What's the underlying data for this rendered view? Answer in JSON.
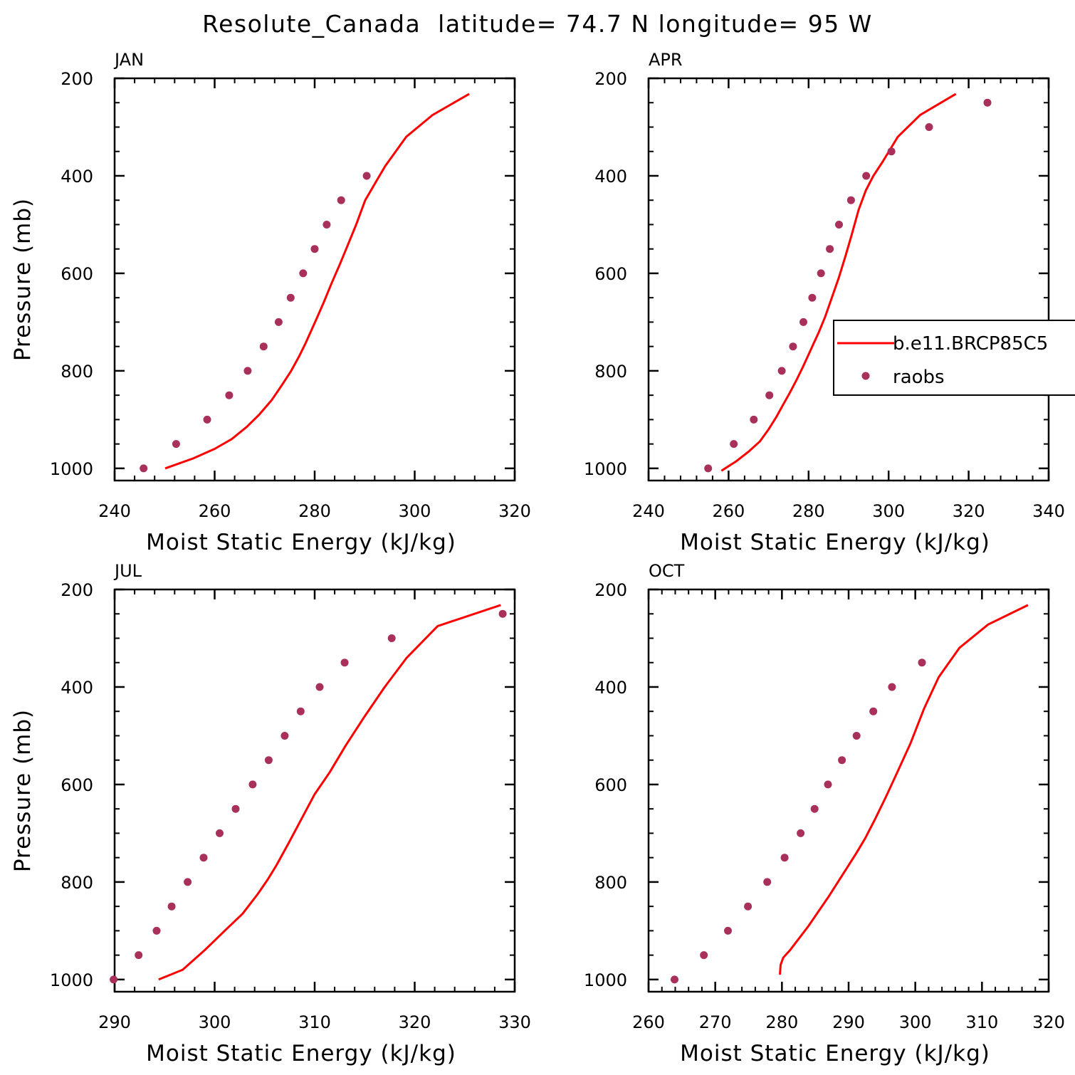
{
  "chart_data": {
    "type": "line",
    "title": "Resolute_Canada  latitude= 74.7 N longitude= 95 W",
    "colors": {
      "model": "#ff0000",
      "raobs": "#a8305a"
    },
    "legend": {
      "placement": "right (inside APR panel, clipped)",
      "entries": [
        {
          "label": "b.e11.BRCP85C5",
          "style": "line"
        },
        {
          "label": "raobs",
          "style": "marker"
        }
      ]
    },
    "panels": [
      {
        "title": "JAN",
        "xlabel": "Moist Static Energy (kJ/kg)",
        "ylabel": "Pressure (mb)",
        "xlim": [
          240,
          320
        ],
        "ylim": [
          1025,
          200
        ],
        "xticks": [
          240,
          260,
          280,
          300,
          320
        ],
        "yticks": [
          200,
          400,
          600,
          800,
          1000
        ],
        "series": [
          {
            "name": "b.e11.BRCP85C5",
            "style": "line",
            "x": [
              250.1,
              255.6,
              260,
              263.4,
              266.4,
              268.9,
              271.4,
              273.4,
              275.3,
              276.9,
              278.1,
              279.2,
              280.3,
              281.8,
              283.4,
              285.1,
              286.7,
              288.3,
              290.1,
              292.1,
              294.1,
              298.3,
              303.6,
              310.9
            ],
            "y": [
              1000,
              980,
              960,
              940,
              915,
              890,
              860,
              830,
              800,
              770,
              745,
              720,
              695,
              660,
              620,
              580,
              540,
              500,
              450,
              415,
              380,
              320,
              275,
              232
            ]
          },
          {
            "name": "raobs",
            "style": "marker",
            "x": [
              245.8,
              252.3,
              258.5,
              262.9,
              266.6,
              269.8,
              272.8,
              275.2,
              277.7,
              280,
              282.4,
              285.3,
              290.4
            ],
            "y": [
              1000,
              950,
              900,
              850,
              800,
              750,
              700,
              650,
              600,
              550,
              500,
              450,
              400
            ]
          }
        ]
      },
      {
        "title": "APR",
        "xlabel": "Moist Static Energy (kJ/kg)",
        "ylabel": "",
        "xlim": [
          240,
          340
        ],
        "ylim": [
          1025,
          200
        ],
        "xticks": [
          240,
          260,
          280,
          300,
          320,
          340
        ],
        "yticks": [
          200,
          400,
          600,
          800,
          1000
        ],
        "series": [
          {
            "name": "b.e11.BRCP85C5",
            "style": "line",
            "x": [
              258.2,
              262,
              265.1,
              267.8,
              270,
              271.9,
              273.6,
              275.3,
              276.9,
              278.4,
              279.8,
              281.2,
              282.6,
              284.1,
              285.8,
              287.5,
              289.2,
              290.8,
              292.5,
              294.3,
              296.2,
              298.6,
              302.3,
              307.9,
              316.8
            ],
            "y": [
              1005,
              985,
              965,
              945,
              920,
              895,
              870,
              845,
              820,
              795,
              770,
              745,
              720,
              690,
              650,
              610,
              565,
              520,
              470,
              430,
              400,
              370,
              320,
              275,
              232
            ]
          },
          {
            "name": "raobs",
            "style": "marker",
            "x": [
              254.9,
              261.3,
              266.3,
              270.2,
              273.3,
              276.1,
              278.7,
              280.9,
              283.1,
              285.3,
              287.6,
              290.6,
              294.4,
              300.7,
              310.1,
              324.7
            ],
            "y": [
              1000,
              950,
              900,
              850,
              800,
              750,
              700,
              650,
              600,
              550,
              500,
              450,
              400,
              350,
              300,
              250
            ]
          }
        ]
      },
      {
        "title": "JUL",
        "xlabel": "Moist Static Energy (kJ/kg)",
        "ylabel": "Pressure (mb)",
        "xlim": [
          290,
          330
        ],
        "ylim": [
          1025,
          200
        ],
        "xticks": [
          290,
          300,
          310,
          320,
          330
        ],
        "yticks": [
          200,
          400,
          600,
          800,
          1000
        ],
        "series": [
          {
            "name": "b.e11.BRCP85C5",
            "style": "line",
            "x": [
              294.4,
              296.8,
              299,
              301,
              302.8,
              304.3,
              305.3,
              306.2,
              307.4,
              308.7,
              310,
              311.5,
              313.1,
              315,
              317,
              319.2,
              322.3,
              328.6
            ],
            "y": [
              1000,
              980,
              940,
              900,
              865,
              825,
              795,
              765,
              720,
              670,
              620,
              575,
              520,
              460,
              400,
              340,
              275,
              232
            ]
          },
          {
            "name": "raobs",
            "style": "marker",
            "x": [
              289.9,
              292.4,
              294.2,
              295.7,
              297.3,
              298.9,
              300.5,
              302.1,
              303.8,
              305.4,
              307,
              308.6,
              310.5,
              313,
              317.7,
              328.8
            ],
            "y": [
              1000,
              950,
              900,
              850,
              800,
              750,
              700,
              650,
              600,
              550,
              500,
              450,
              400,
              350,
              300,
              250
            ]
          }
        ]
      },
      {
        "title": "OCT",
        "xlabel": "Moist Static Energy (kJ/kg)",
        "ylabel": "",
        "xlim": [
          260,
          320
        ],
        "ylim": [
          1025,
          200
        ],
        "xticks": [
          260,
          270,
          280,
          290,
          300,
          310,
          320
        ],
        "yticks": [
          200,
          400,
          600,
          800,
          1000
        ],
        "series": [
          {
            "name": "b.e11.BRCP85C5",
            "style": "line",
            "x": [
              279.7,
              279.8,
              280.2,
              281.2,
              282.6,
              284,
              285.5,
              287,
              288.4,
              289.8,
              291.2,
              292.5,
              294,
              295.6,
              297.3,
              299.3,
              301.3,
              303.5,
              306.6,
              310.9,
              316.9
            ],
            "y": [
              990,
              970,
              955,
              940,
              915,
              890,
              860,
              830,
              800,
              770,
              740,
              710,
              670,
              625,
              575,
              515,
              445,
              380,
              320,
              272,
              232
            ]
          },
          {
            "name": "raobs",
            "style": "marker",
            "x": [
              263.9,
              268.3,
              271.9,
              274.9,
              277.8,
              280.4,
              282.8,
              284.9,
              286.9,
              289,
              291.2,
              293.7,
              296.5,
              301
            ],
            "y": [
              1000,
              950,
              900,
              850,
              800,
              750,
              700,
              650,
              600,
              550,
              500,
              450,
              400,
              350
            ]
          }
        ]
      }
    ]
  }
}
